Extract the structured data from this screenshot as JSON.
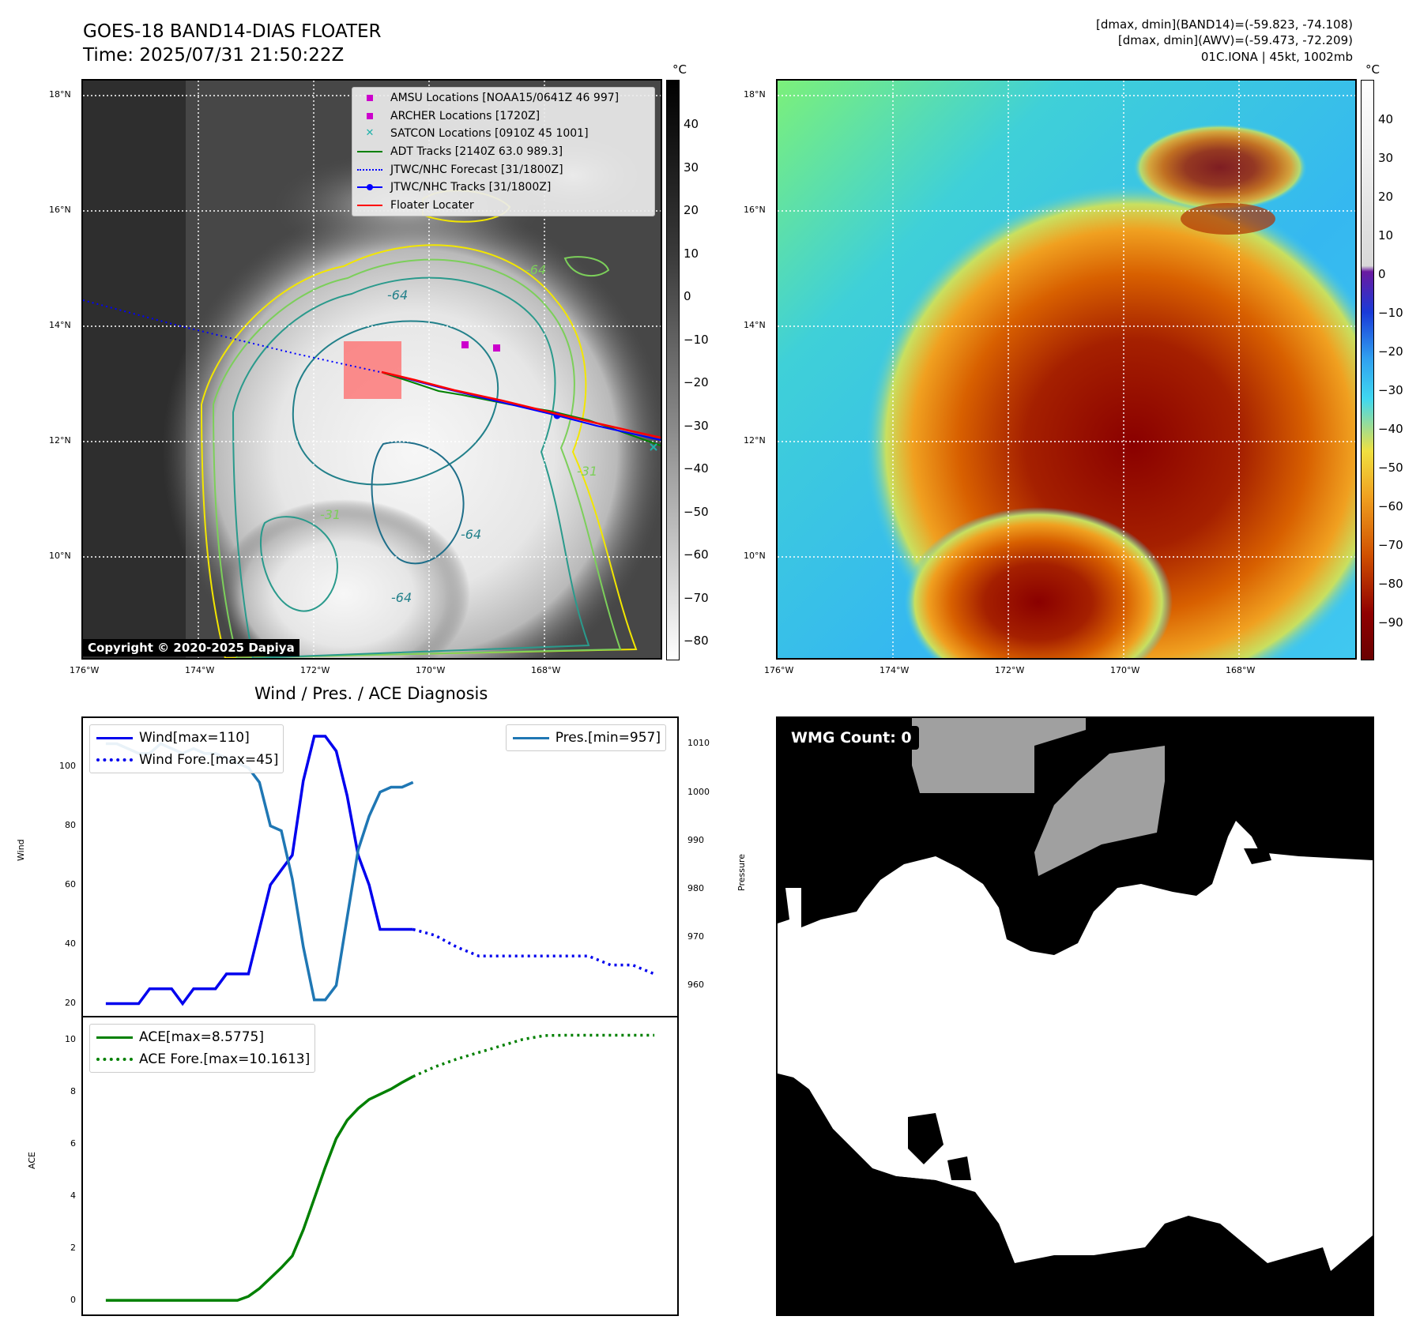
{
  "header": {
    "title_line1": "GOES-18 BAND14-DIAS FLOATER",
    "title_line2": "Time: 2025/07/31 21:50:22Z",
    "info_line1": "[dmax, dmin](BAND14)=(-59.823, -74.108)",
    "info_line2": "[dmax, dmin](AWV)=(-59.473, -72.209)",
    "info_line3": "01C.IONA | 45kt, 1002mb"
  },
  "map_axes": {
    "lat_labels": [
      "18°N",
      "16°N",
      "14°N",
      "12°N",
      "10°N"
    ],
    "lon_labels": [
      "176°W",
      "174°W",
      "172°W",
      "170°W",
      "168°W"
    ]
  },
  "left_map": {
    "copyright": "Copyright © 2020-2025 Dapiya",
    "colorbar_unit": "°C",
    "colorbar_ticks": [
      "40",
      "30",
      "20",
      "10",
      "0",
      "−10",
      "−20",
      "−30",
      "−40",
      "−50",
      "−60",
      "−70",
      "−80"
    ],
    "legend": [
      {
        "label": "AMSU Locations [NOAA15/0641Z 46 997]",
        "color": "#cc00cc",
        "kind": "square"
      },
      {
        "label": "ARCHER Locations [1720Z]",
        "color": "#cc00cc",
        "kind": "square"
      },
      {
        "label": "SATCON Locations [0910Z 45 1001]",
        "color": "#20b2aa",
        "kind": "x"
      },
      {
        "label": "ADT Tracks [2140Z 63.0 989.3]",
        "color": "#008000",
        "kind": "line"
      },
      {
        "label": "JTWC/NHC Forecast [31/1800Z]",
        "color": "#0000ff",
        "kind": "dotted"
      },
      {
        "label": "JTWC/NHC Tracks [31/1800Z]",
        "color": "#0000ff",
        "kind": "line-dot"
      },
      {
        "label": "Floater Locater",
        "color": "#ff0000",
        "kind": "line"
      }
    ],
    "contour_labels": [
      "-64",
      "-31",
      "-64",
      "-64",
      "-31",
      "-64"
    ]
  },
  "right_map": {
    "colorbar_unit": "°C",
    "colorbar_ticks": [
      "40",
      "30",
      "20",
      "10",
      "0",
      "−10",
      "−20",
      "−30",
      "−40",
      "−50",
      "−60",
      "−70",
      "−80",
      "−90"
    ]
  },
  "wmg": {
    "label": "WMG Count: 0"
  },
  "chart_data": [
    {
      "type": "line",
      "title": "Wind / Pres. / ACE Diagnosis",
      "ylabel": "Wind",
      "ylabel_right": "Pressure",
      "ylim": [
        18,
        114
      ],
      "ylim_right": [
        955,
        1014
      ],
      "yticks": [
        20,
        40,
        60,
        80,
        100
      ],
      "yticks_right": [
        960,
        970,
        980,
        990,
        1000,
        1010
      ],
      "legend_left": [
        "Wind[max=110]",
        "Wind Fore.[max=45]"
      ],
      "legend_right": [
        "Pres.[min=957]"
      ],
      "series": [
        {
          "name": "Wind[max=110]",
          "color": "#0000ee",
          "style": "solid",
          "x": [
            0,
            1,
            2,
            3,
            4,
            5,
            6,
            7,
            8,
            9,
            10,
            11,
            12,
            13,
            14,
            15,
            16,
            17,
            18,
            19,
            20,
            21,
            22,
            23,
            24,
            25,
            26,
            27,
            28
          ],
          "values": [
            20,
            20,
            20,
            20,
            25,
            25,
            25,
            20,
            25,
            25,
            25,
            30,
            30,
            30,
            45,
            60,
            65,
            70,
            95,
            110,
            110,
            105,
            90,
            70,
            60,
            45,
            45,
            45,
            45
          ]
        },
        {
          "name": "Wind Fore.[max=45]",
          "color": "#0000ee",
          "style": "dotted",
          "x": [
            28,
            30,
            32,
            34,
            36,
            38,
            40,
            42,
            44,
            46,
            48,
            50
          ],
          "values": [
            45,
            43,
            39,
            36,
            36,
            36,
            36,
            36,
            36,
            33,
            33,
            30
          ]
        },
        {
          "name": "Pres.[min=957]",
          "color": "#1f77b4",
          "style": "solid",
          "axis": "right",
          "x": [
            0,
            1,
            2,
            3,
            4,
            5,
            6,
            7,
            8,
            9,
            10,
            11,
            12,
            13,
            14,
            15,
            16,
            17,
            18,
            19,
            20,
            21,
            22,
            23,
            24,
            25,
            26,
            27,
            28
          ],
          "values": [
            1010,
            1010,
            1009,
            1008,
            1008,
            1010,
            1009,
            1008,
            1009,
            1008,
            1008,
            1007,
            1006,
            1005,
            1002,
            993,
            992,
            982,
            968,
            957,
            957,
            960,
            974,
            988,
            995,
            1000,
            1001,
            1001,
            1002
          ]
        }
      ]
    },
    {
      "type": "line",
      "ylabel": "ACE",
      "ylim": [
        -0.3,
        10.6
      ],
      "yticks": [
        0,
        2,
        4,
        6,
        8,
        10
      ],
      "legend": [
        "ACE[max=8.5775]",
        "ACE Fore.[max=10.1613]"
      ],
      "series": [
        {
          "name": "ACE[max=8.5775]",
          "color": "#008000",
          "style": "solid",
          "x": [
            0,
            2,
            4,
            6,
            8,
            10,
            12,
            13,
            14,
            15,
            16,
            17,
            18,
            19,
            20,
            21,
            22,
            23,
            24,
            25,
            26,
            27,
            28
          ],
          "values": [
            0,
            0,
            0,
            0,
            0,
            0,
            0,
            0.15,
            0.45,
            0.85,
            1.25,
            1.7,
            2.7,
            3.9,
            5.1,
            6.2,
            6.9,
            7.35,
            7.7,
            7.9,
            8.1,
            8.35,
            8.5775
          ]
        },
        {
          "name": "ACE Fore.[max=10.1613]",
          "color": "#008000",
          "style": "dotted",
          "x": [
            28,
            30,
            32,
            34,
            36,
            38,
            40,
            42,
            44,
            46,
            48,
            50
          ],
          "values": [
            8.5775,
            8.95,
            9.25,
            9.5,
            9.75,
            10.0,
            10.15,
            10.16,
            10.16,
            10.16,
            10.16,
            10.1613
          ]
        }
      ]
    }
  ]
}
